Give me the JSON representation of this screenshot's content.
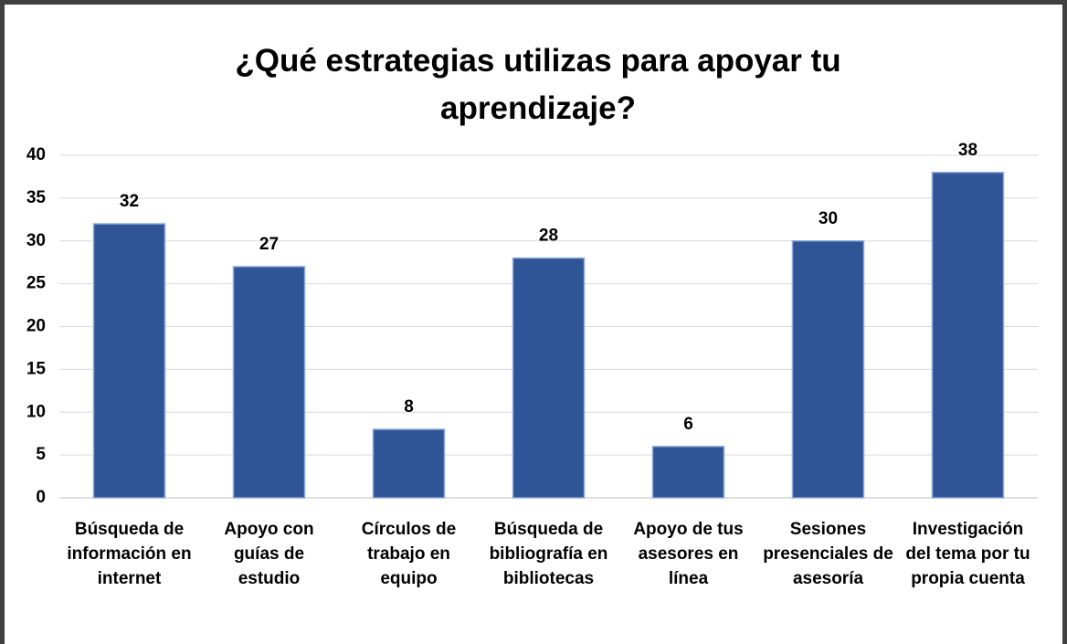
{
  "chart_data": {
    "type": "bar",
    "title": "¿Qué estrategias utilizas para apoyar tu aprendizaje?",
    "categories": [
      "Búsqueda de información en internet",
      "Apoyo con guías de estudio",
      "Círculos de trabajo en equipo",
      "Búsqueda de bibliografía en bibliotecas",
      "Apoyo de tus asesores en línea",
      "Sesiones presenciales de asesoría",
      "Investigación del tema por tu propia cuenta"
    ],
    "values": [
      32,
      27,
      8,
      28,
      6,
      30,
      38
    ],
    "color": "#2f5597",
    "ylim": [
      0,
      40
    ],
    "yticks": [
      0,
      5,
      10,
      15,
      20,
      25,
      30,
      35,
      40
    ],
    "grid": true
  }
}
